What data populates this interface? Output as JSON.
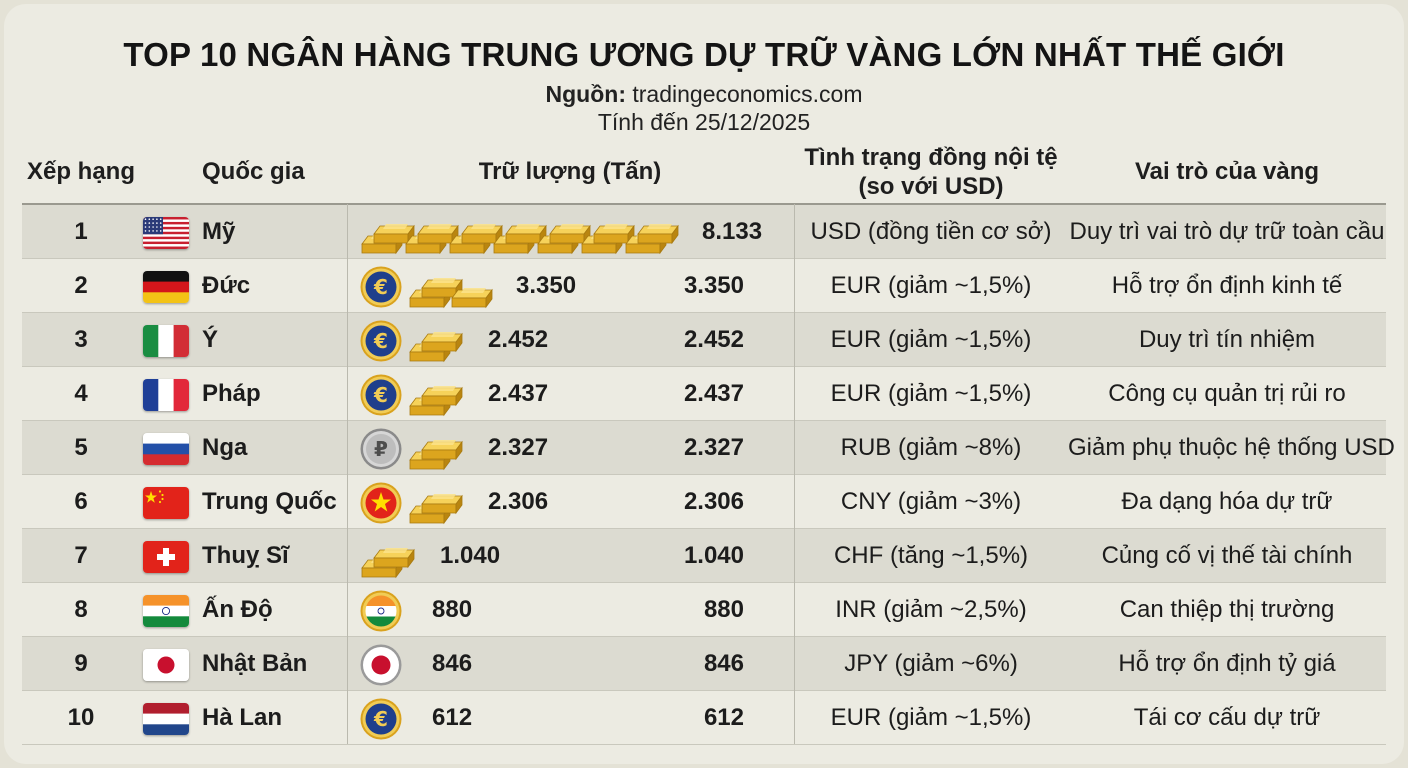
{
  "title": "TOP 10 NGÂN HÀNG TRUNG ƯƠNG DỰ TRỮ VÀNG LỚN NHẤT THẾ GIỚI",
  "source_label": "Nguồn:",
  "source_value": "tradingeconomics.com",
  "as_of": "Tính đến 25/12/2025",
  "headers": {
    "rank": "Xếp hạng",
    "country": "Quốc gia",
    "reserves": "Trữ lượng (Tấn)",
    "currency_line1": "Tình trạng đồng nội tệ",
    "currency_line2": "(so với USD)",
    "role": "Vai trò của vàng"
  },
  "colors": {
    "background": "#ecebe2",
    "stripe": "#dcdbd1",
    "gold": "#e9b624",
    "coin_blue": "#1f3f8c"
  },
  "rows": [
    {
      "rank": "1",
      "country": "Mỹ",
      "flag": "us-flag",
      "coin": "none",
      "bars": 7,
      "reserve": "8.133",
      "reserve_repeat": "",
      "currency": "USD (đồng tiền cơ sở)",
      "role": "Duy trì vai trò dự trữ toàn cầu"
    },
    {
      "rank": "2",
      "country": "Đức",
      "flag": "germany-flag",
      "coin": "euro-coin",
      "bars": 2,
      "reserve": "3.350",
      "reserve_repeat": "3.350",
      "currency": "EUR (giảm ~1,5%)",
      "role": "Hỗ trợ ổn định kinh tế"
    },
    {
      "rank": "3",
      "country": "Ý",
      "flag": "italy-flag",
      "coin": "euro-coin",
      "bars": 1,
      "reserve": "2.452",
      "reserve_repeat": "2.452",
      "currency": "EUR (giảm ~1,5%)",
      "role": "Duy trì tín nhiệm"
    },
    {
      "rank": "4",
      "country": "Pháp",
      "flag": "france-flag",
      "coin": "euro-coin",
      "bars": 1,
      "reserve": "2.437",
      "reserve_repeat": "2.437",
      "currency": "EUR (giảm ~1,5%)",
      "role": "Công cụ quản trị rủi ro"
    },
    {
      "rank": "5",
      "country": "Nga",
      "flag": "russia-flag",
      "coin": "ruble-coin",
      "bars": 1,
      "reserve": "2.327",
      "reserve_repeat": "2.327",
      "currency": "RUB (giảm ~8%)",
      "role": "Giảm phụ thuộc hệ thống USD"
    },
    {
      "rank": "6",
      "country": "Trung Quốc",
      "flag": "china-flag",
      "coin": "china-coin",
      "bars": 1,
      "reserve": "2.306",
      "reserve_repeat": "2.306",
      "currency": "CNY (giảm ~3%)",
      "role": "Đa dạng hóa dự trữ"
    },
    {
      "rank": "7",
      "country": "Thuỵ Sĩ",
      "flag": "switzerland-flag",
      "coin": "none",
      "bars": 1,
      "reserve": "1.040",
      "reserve_repeat": "1.040",
      "currency": "CHF (tăng ~1,5%)",
      "role": "Củng cố vị thế tài chính"
    },
    {
      "rank": "8",
      "country": "Ấn Độ",
      "flag": "india-flag",
      "coin": "india-coin",
      "bars": 0,
      "reserve": "880",
      "reserve_repeat": "880",
      "currency": "INR (giảm ~2,5%)",
      "role": "Can thiệp thị trường"
    },
    {
      "rank": "9",
      "country": "Nhật Bản",
      "flag": "japan-flag",
      "coin": "japan-coin",
      "bars": 0,
      "reserve": "846",
      "reserve_repeat": "846",
      "currency": "JPY (giảm ~6%)",
      "role": "Hỗ trợ ổn định tỷ giá"
    },
    {
      "rank": "10",
      "country": "Hà Lan",
      "flag": "netherlands-flag",
      "coin": "euro-coin",
      "bars": 0,
      "reserve": "612",
      "reserve_repeat": "612",
      "currency": "EUR (giảm ~1,5%)",
      "role": "Tái cơ cấu dự trữ"
    }
  ]
}
